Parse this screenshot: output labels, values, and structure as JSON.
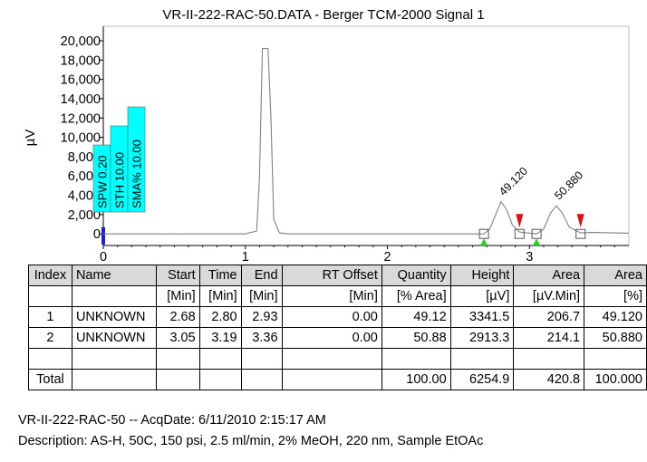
{
  "chart_data": {
    "type": "line",
    "title": "VR-II-222-RAC-50.DATA - Berger TCM-2000 Signal 1",
    "ylabel": "µV",
    "xlabel": "",
    "xlim": [
      0,
      3.7
    ],
    "ylim": [
      -1200,
      21500
    ],
    "y_ticks": [
      "0",
      "2,000",
      "4,000",
      "6,000",
      "8,000",
      "10,000",
      "12,000",
      "14,000",
      "16,000",
      "18,000",
      "20,000"
    ],
    "y_tick_values": [
      0,
      2000,
      4000,
      6000,
      8000,
      10000,
      12000,
      14000,
      16000,
      18000,
      20000
    ],
    "x_ticks": [
      "0",
      "1",
      "2",
      "3"
    ],
    "x_tick_values": [
      0,
      1,
      2,
      3
    ],
    "grid": false,
    "series": [
      {
        "color": "#808080",
        "x": [
          0,
          1.0,
          1.08,
          1.1,
          1.12,
          1.14,
          1.16,
          1.18,
          1.2,
          1.24,
          1.3,
          2.6,
          2.68,
          2.72,
          2.76,
          2.8,
          2.84,
          2.88,
          2.93,
          3.0,
          3.05,
          3.1,
          3.15,
          3.19,
          3.23,
          3.28,
          3.36,
          3.45,
          3.7
        ],
        "y": [
          0,
          0,
          300,
          6000,
          19200,
          19200,
          19200,
          12000,
          1500,
          100,
          0,
          0,
          0,
          500,
          1900,
          3340,
          2500,
          900,
          200,
          80,
          0,
          500,
          2200,
          2910,
          2200,
          700,
          100,
          150,
          80
        ]
      }
    ],
    "peaks": [
      {
        "label": "49.120",
        "apex_x": 2.8,
        "apex_y": 3340,
        "start_x": 2.68,
        "end_x": 2.93
      },
      {
        "label": "50.880",
        "apex_x": 3.19,
        "apex_y": 2910,
        "start_x": 3.05,
        "end_x": 3.36
      }
    ],
    "annotations": [
      "SPW 0.20",
      "STH 10.00",
      "SMA% 10.00"
    ],
    "annotation_color": "#00ffff"
  },
  "table": {
    "headers": [
      "Index",
      "Name",
      "Start",
      "Time",
      "End",
      "RT Offset",
      "Quantity",
      "Height",
      "Area",
      "Area"
    ],
    "units": [
      "",
      "",
      "[Min]",
      "[Min]",
      "[Min]",
      "[Min]",
      "[% Area]",
      "[µV]",
      "[µV.Min]",
      "[%]"
    ],
    "rows": [
      [
        "1",
        "UNKNOWN",
        "2.68",
        "2.80",
        "2.93",
        "0.00",
        "49.12",
        "3341.5",
        "206.7",
        "49.120"
      ],
      [
        "2",
        "UNKNOWN",
        "3.05",
        "3.19",
        "3.36",
        "0.00",
        "50.88",
        "2913.3",
        "214.1",
        "50.880"
      ]
    ],
    "total": [
      "Total",
      "",
      "",
      "",
      "",
      "",
      "100.00",
      "6254.9",
      "420.8",
      "100.000"
    ]
  },
  "footer": {
    "line1": "VR-II-222-RAC-50 -- AcqDate: 6/11/2010 2:15:17 AM",
    "line2": "Description: AS-H, 50C, 150 psi, 2.5 ml/min, 2% MeOH, 220 nm, Sample EtOAc"
  }
}
